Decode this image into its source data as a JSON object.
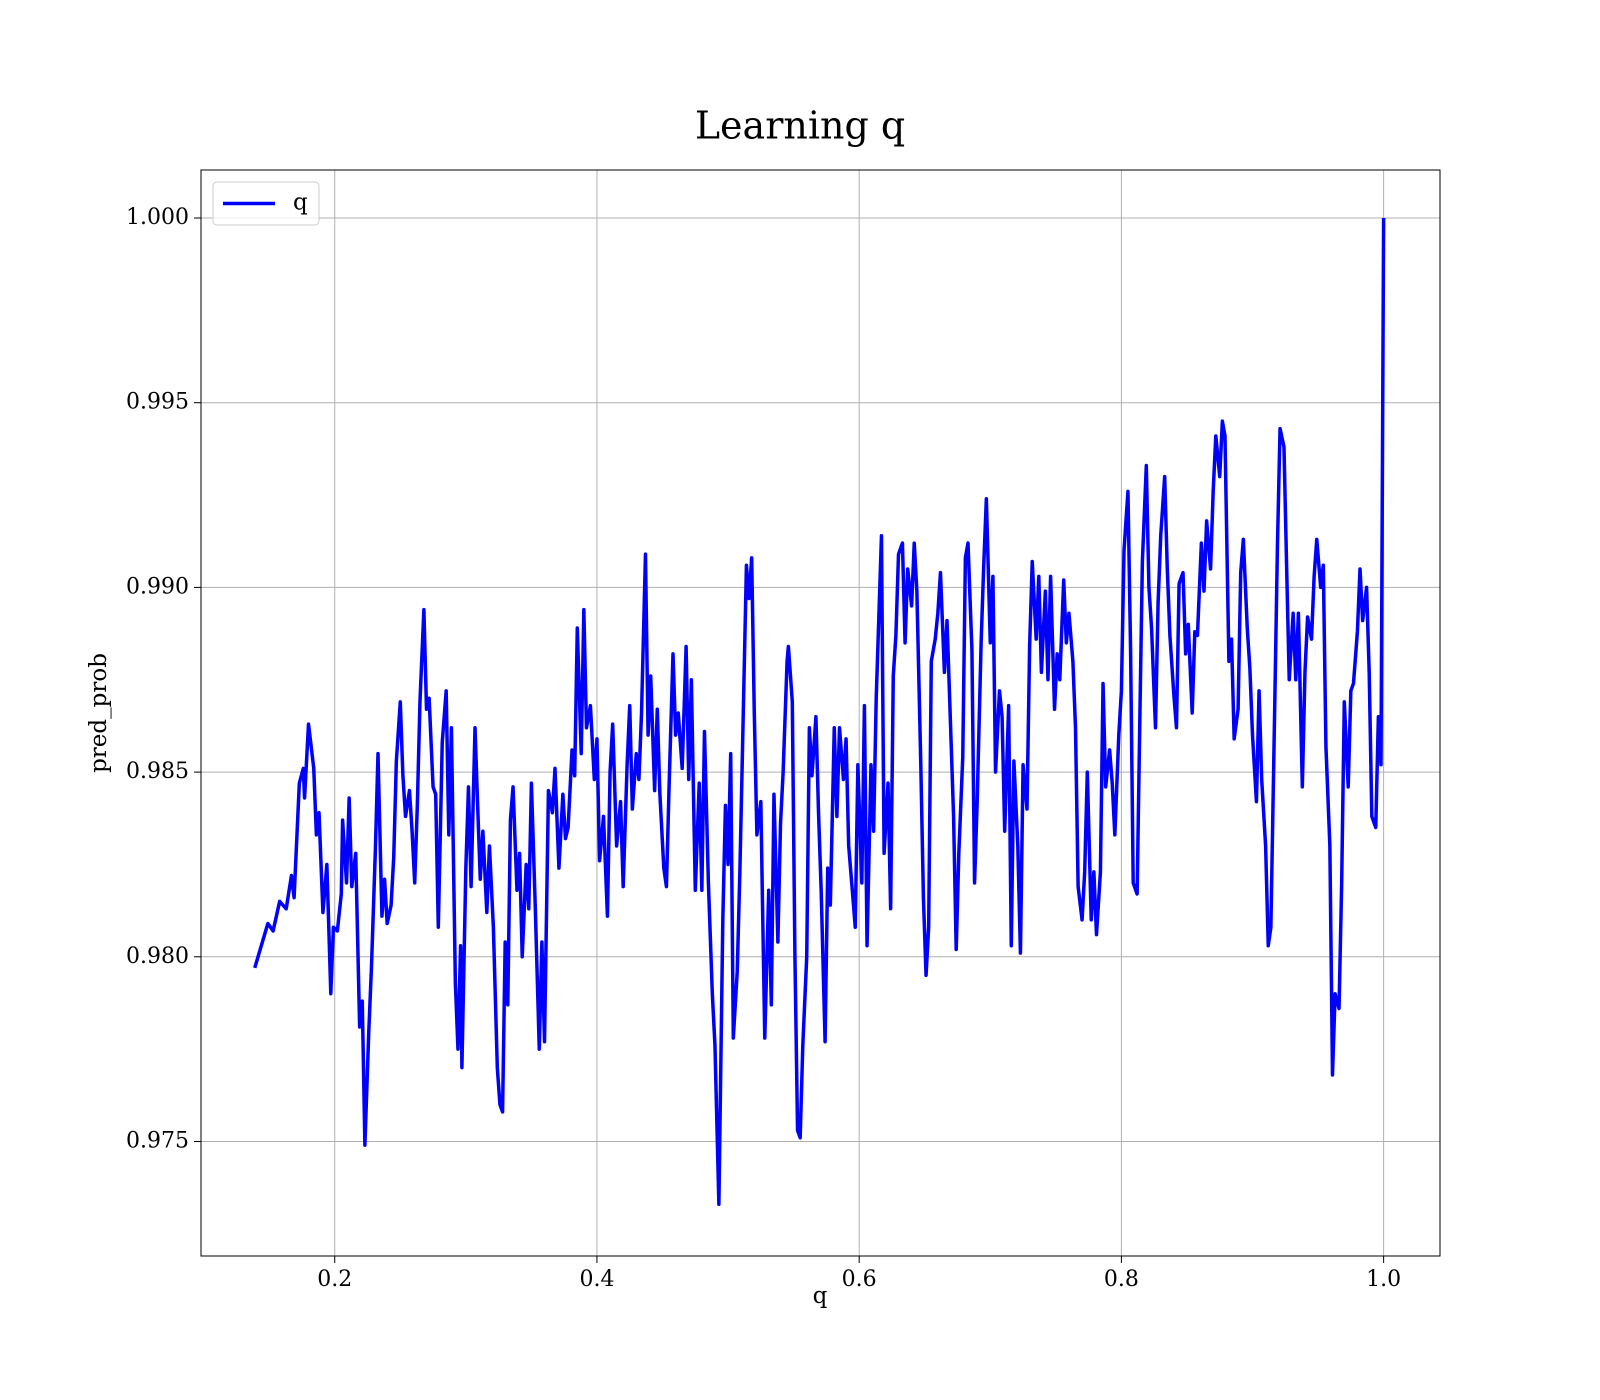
{
  "chart_data": {
    "type": "line",
    "title": "Learning q",
    "xlabel": "q",
    "ylabel": "pred_prob",
    "x": [
      0.139,
      0.149,
      0.153,
      0.158,
      0.163,
      0.167,
      0.169,
      0.173,
      0.176,
      0.177,
      0.18,
      0.182,
      0.184,
      0.186,
      0.188,
      0.191,
      0.194,
      0.197,
      0.199,
      0.202,
      0.205,
      0.206,
      0.209,
      0.211,
      0.213,
      0.216,
      0.219,
      0.221,
      0.223,
      0.226,
      0.228,
      0.231,
      0.233,
      0.236,
      0.238,
      0.24,
      0.243,
      0.245,
      0.247,
      0.25,
      0.252,
      0.254,
      0.257,
      0.259,
      0.261,
      0.263,
      0.265,
      0.268,
      0.27,
      0.272,
      0.275,
      0.277,
      0.279,
      0.282,
      0.285,
      0.287,
      0.289,
      0.292,
      0.294,
      0.296,
      0.297,
      0.3,
      0.302,
      0.304,
      0.307,
      0.309,
      0.311,
      0.313,
      0.316,
      0.318,
      0.321,
      0.324,
      0.326,
      0.328,
      0.33,
      0.332,
      0.334,
      0.336,
      0.339,
      0.341,
      0.343,
      0.346,
      0.348,
      0.35,
      0.353,
      0.356,
      0.358,
      0.36,
      0.363,
      0.366,
      0.368,
      0.371,
      0.374,
      0.376,
      0.378,
      0.381,
      0.383,
      0.385,
      0.388,
      0.39,
      0.392,
      0.395,
      0.398,
      0.4,
      0.402,
      0.405,
      0.408,
      0.41,
      0.412,
      0.415,
      0.418,
      0.42,
      0.423,
      0.425,
      0.427,
      0.43,
      0.432,
      0.434,
      0.437,
      0.439,
      0.441,
      0.444,
      0.446,
      0.448,
      0.451,
      0.453,
      0.455,
      0.458,
      0.46,
      0.462,
      0.465,
      0.468,
      0.47,
      0.472,
      0.475,
      0.478,
      0.48,
      0.482,
      0.485,
      0.488,
      0.49,
      0.493,
      0.496,
      0.498,
      0.5,
      0.502,
      0.504,
      0.507,
      0.509,
      0.511,
      0.514,
      0.516,
      0.518,
      0.52,
      0.522,
      0.525,
      0.526,
      0.528,
      0.531,
      0.533,
      0.535,
      0.538,
      0.54,
      0.542,
      0.545,
      0.546,
      0.549,
      0.551,
      0.553,
      0.555,
      0.557,
      0.56,
      0.562,
      0.564,
      0.567,
      0.569,
      0.571,
      0.574,
      0.576,
      0.578,
      0.581,
      0.583,
      0.585,
      0.588,
      0.59,
      0.592,
      0.595,
      0.597,
      0.599,
      0.602,
      0.604,
      0.606,
      0.609,
      0.611,
      0.613,
      0.616,
      0.617,
      0.619,
      0.622,
      0.624,
      0.626,
      0.628,
      0.63,
      0.633,
      0.635,
      0.637,
      0.64,
      0.642,
      0.644,
      0.647,
      0.649,
      0.651,
      0.653,
      0.655,
      0.658,
      0.66,
      0.662,
      0.665,
      0.667,
      0.669,
      0.672,
      0.674,
      0.676,
      0.679,
      0.681,
      0.683,
      0.686,
      0.688,
      0.69,
      0.693,
      0.695,
      0.697,
      0.7,
      0.702,
      0.704,
      0.707,
      0.709,
      0.711,
      0.714,
      0.716,
      0.718,
      0.721,
      0.723,
      0.725,
      0.728,
      0.73,
      0.732,
      0.735,
      0.737,
      0.739,
      0.742,
      0.744,
      0.746,
      0.749,
      0.751,
      0.753,
      0.756,
      0.758,
      0.76,
      0.763,
      0.765,
      0.767,
      0.77,
      0.772,
      0.774,
      0.777,
      0.779,
      0.781,
      0.784,
      0.786,
      0.788,
      0.791,
      0.793,
      0.795,
      0.798,
      0.8,
      0.802,
      0.805,
      0.807,
      0.809,
      0.812,
      0.814,
      0.816,
      0.819,
      0.821,
      0.823,
      0.826,
      0.828,
      0.83,
      0.833,
      0.835,
      0.837,
      0.84,
      0.842,
      0.844,
      0.847,
      0.849,
      0.851,
      0.854,
      0.856,
      0.858,
      0.861,
      0.863,
      0.865,
      0.868,
      0.87,
      0.872,
      0.875,
      0.877,
      0.879,
      0.882,
      0.884,
      0.886,
      0.889,
      0.891,
      0.893,
      0.896,
      0.898,
      0.9,
      0.903,
      0.905,
      0.907,
      0.91,
      0.912,
      0.914,
      0.917,
      0.919,
      0.921,
      0.924,
      0.926,
      0.928,
      0.931,
      0.933,
      0.935,
      0.938,
      0.94,
      0.942,
      0.945,
      0.947,
      0.949,
      0.952,
      0.954,
      0.956,
      0.959,
      0.961,
      0.963,
      0.966,
      0.968,
      0.97,
      0.973,
      0.975,
      0.977,
      0.98,
      0.982,
      0.984,
      0.987,
      0.989,
      0.991,
      0.994,
      0.996,
      0.998,
      1.0
    ],
    "series": [
      {
        "name": "q",
        "color": "#0000ff",
        "values": [
          0.9797,
          0.9809,
          0.9807,
          0.9815,
          0.9813,
          0.9822,
          0.9816,
          0.9847,
          0.9851,
          0.9843,
          0.9863,
          0.9857,
          0.9851,
          0.9833,
          0.9839,
          0.9812,
          0.9825,
          0.979,
          0.9808,
          0.9807,
          0.9817,
          0.9837,
          0.982,
          0.9843,
          0.9819,
          0.9828,
          0.9781,
          0.9788,
          0.9749,
          0.978,
          0.9797,
          0.9829,
          0.9855,
          0.9811,
          0.9821,
          0.9809,
          0.9814,
          0.9827,
          0.9853,
          0.9869,
          0.9849,
          0.9838,
          0.9845,
          0.9834,
          0.982,
          0.9841,
          0.9869,
          0.9894,
          0.9867,
          0.987,
          0.9846,
          0.9844,
          0.9808,
          0.9858,
          0.9872,
          0.9833,
          0.9862,
          0.9793,
          0.9775,
          0.9803,
          0.977,
          0.9824,
          0.9846,
          0.9819,
          0.9862,
          0.9841,
          0.9821,
          0.9834,
          0.9812,
          0.983,
          0.9808,
          0.977,
          0.976,
          0.9758,
          0.9804,
          0.9787,
          0.9837,
          0.9846,
          0.9818,
          0.9828,
          0.98,
          0.9825,
          0.9813,
          0.9847,
          0.9813,
          0.9775,
          0.9804,
          0.9777,
          0.9845,
          0.9839,
          0.9851,
          0.9824,
          0.9844,
          0.9832,
          0.9835,
          0.9856,
          0.9849,
          0.9889,
          0.9855,
          0.9894,
          0.9862,
          0.9868,
          0.9848,
          0.9859,
          0.9826,
          0.9838,
          0.9811,
          0.985,
          0.9863,
          0.983,
          0.9842,
          0.9819,
          0.9852,
          0.9868,
          0.984,
          0.9855,
          0.9848,
          0.9866,
          0.9909,
          0.986,
          0.9876,
          0.9845,
          0.9867,
          0.9844,
          0.9824,
          0.9819,
          0.9846,
          0.9882,
          0.986,
          0.9866,
          0.9851,
          0.9884,
          0.9848,
          0.9875,
          0.9818,
          0.9847,
          0.9818,
          0.9861,
          0.982,
          0.979,
          0.9776,
          0.9733,
          0.981,
          0.9841,
          0.9825,
          0.9855,
          0.9778,
          0.9796,
          0.9823,
          0.9856,
          0.9906,
          0.9897,
          0.9908,
          0.9866,
          0.9833,
          0.9842,
          0.982,
          0.9778,
          0.9818,
          0.9787,
          0.9844,
          0.9804,
          0.9836,
          0.985,
          0.988,
          0.9884,
          0.9869,
          0.98,
          0.9753,
          0.9751,
          0.9776,
          0.98,
          0.9862,
          0.9849,
          0.9865,
          0.9839,
          0.9818,
          0.9777,
          0.9824,
          0.9814,
          0.9862,
          0.9838,
          0.9862,
          0.9848,
          0.9859,
          0.983,
          0.9817,
          0.9808,
          0.9852,
          0.982,
          0.9868,
          0.9803,
          0.9852,
          0.9834,
          0.987,
          0.9903,
          0.9914,
          0.9828,
          0.9847,
          0.9813,
          0.9876,
          0.9887,
          0.9909,
          0.9912,
          0.9885,
          0.9905,
          0.9895,
          0.9912,
          0.9899,
          0.9852,
          0.9816,
          0.9795,
          0.9808,
          0.988,
          0.9886,
          0.9893,
          0.9904,
          0.9877,
          0.9891,
          0.987,
          0.9838,
          0.9802,
          0.9828,
          0.9854,
          0.9908,
          0.9912,
          0.9883,
          0.982,
          0.9842,
          0.9885,
          0.9906,
          0.9924,
          0.9885,
          0.9903,
          0.985,
          0.9872,
          0.9865,
          0.9834,
          0.9868,
          0.9803,
          0.9853,
          0.983,
          0.9801,
          0.9852,
          0.984,
          0.9884,
          0.9907,
          0.9886,
          0.9903,
          0.9877,
          0.9899,
          0.9875,
          0.9903,
          0.9867,
          0.9882,
          0.9875,
          0.9902,
          0.9885,
          0.9893,
          0.988,
          0.9862,
          0.9819,
          0.981,
          0.9823,
          0.985,
          0.981,
          0.9823,
          0.9806,
          0.9823,
          0.9874,
          0.9846,
          0.9856,
          0.9847,
          0.9833,
          0.986,
          0.9872,
          0.991,
          0.9926,
          0.9883,
          0.982,
          0.9817,
          0.9863,
          0.9907,
          0.9933,
          0.99,
          0.9889,
          0.9862,
          0.9896,
          0.9914,
          0.993,
          0.9905,
          0.9887,
          0.9871,
          0.9862,
          0.9901,
          0.9904,
          0.9882,
          0.989,
          0.9866,
          0.9888,
          0.9887,
          0.9912,
          0.9899,
          0.9918,
          0.9905,
          0.9926,
          0.9941,
          0.993,
          0.9945,
          0.9941,
          0.988,
          0.9886,
          0.9859,
          0.9867,
          0.9904,
          0.9913,
          0.9889,
          0.9878,
          0.986,
          0.9842,
          0.9872,
          0.9848,
          0.983,
          0.9803,
          0.9808,
          0.9869,
          0.9911,
          0.9943,
          0.9938,
          0.9906,
          0.9875,
          0.9893,
          0.9875,
          0.9893,
          0.9846,
          0.9877,
          0.9892,
          0.9886,
          0.9903,
          0.9913,
          0.99,
          0.9906,
          0.9857,
          0.983,
          0.9768,
          0.979,
          0.9786,
          0.982,
          0.9869,
          0.9846,
          0.9872,
          0.9874,
          0.9888,
          0.9905,
          0.9891,
          0.99,
          0.9877,
          0.9838,
          0.9835,
          0.9865,
          0.9852,
          1.0
        ]
      }
    ],
    "xlim": [
      0.098,
      1.043
    ],
    "ylim": [
      0.9719,
      1.0013
    ],
    "xticks": [
      0.2,
      0.4,
      0.6,
      0.8,
      {
        "value": 1,
        "label": "1.0"
      }
    ],
    "yticks": [
      0.975,
      {
        "value": 0.98,
        "label": "0.980"
      },
      0.985,
      {
        "value": 0.99,
        "label": "0.990"
      },
      0.995,
      {
        "value": 1,
        "label": "1.000"
      }
    ],
    "grid": true,
    "legend": "upper left"
  }
}
